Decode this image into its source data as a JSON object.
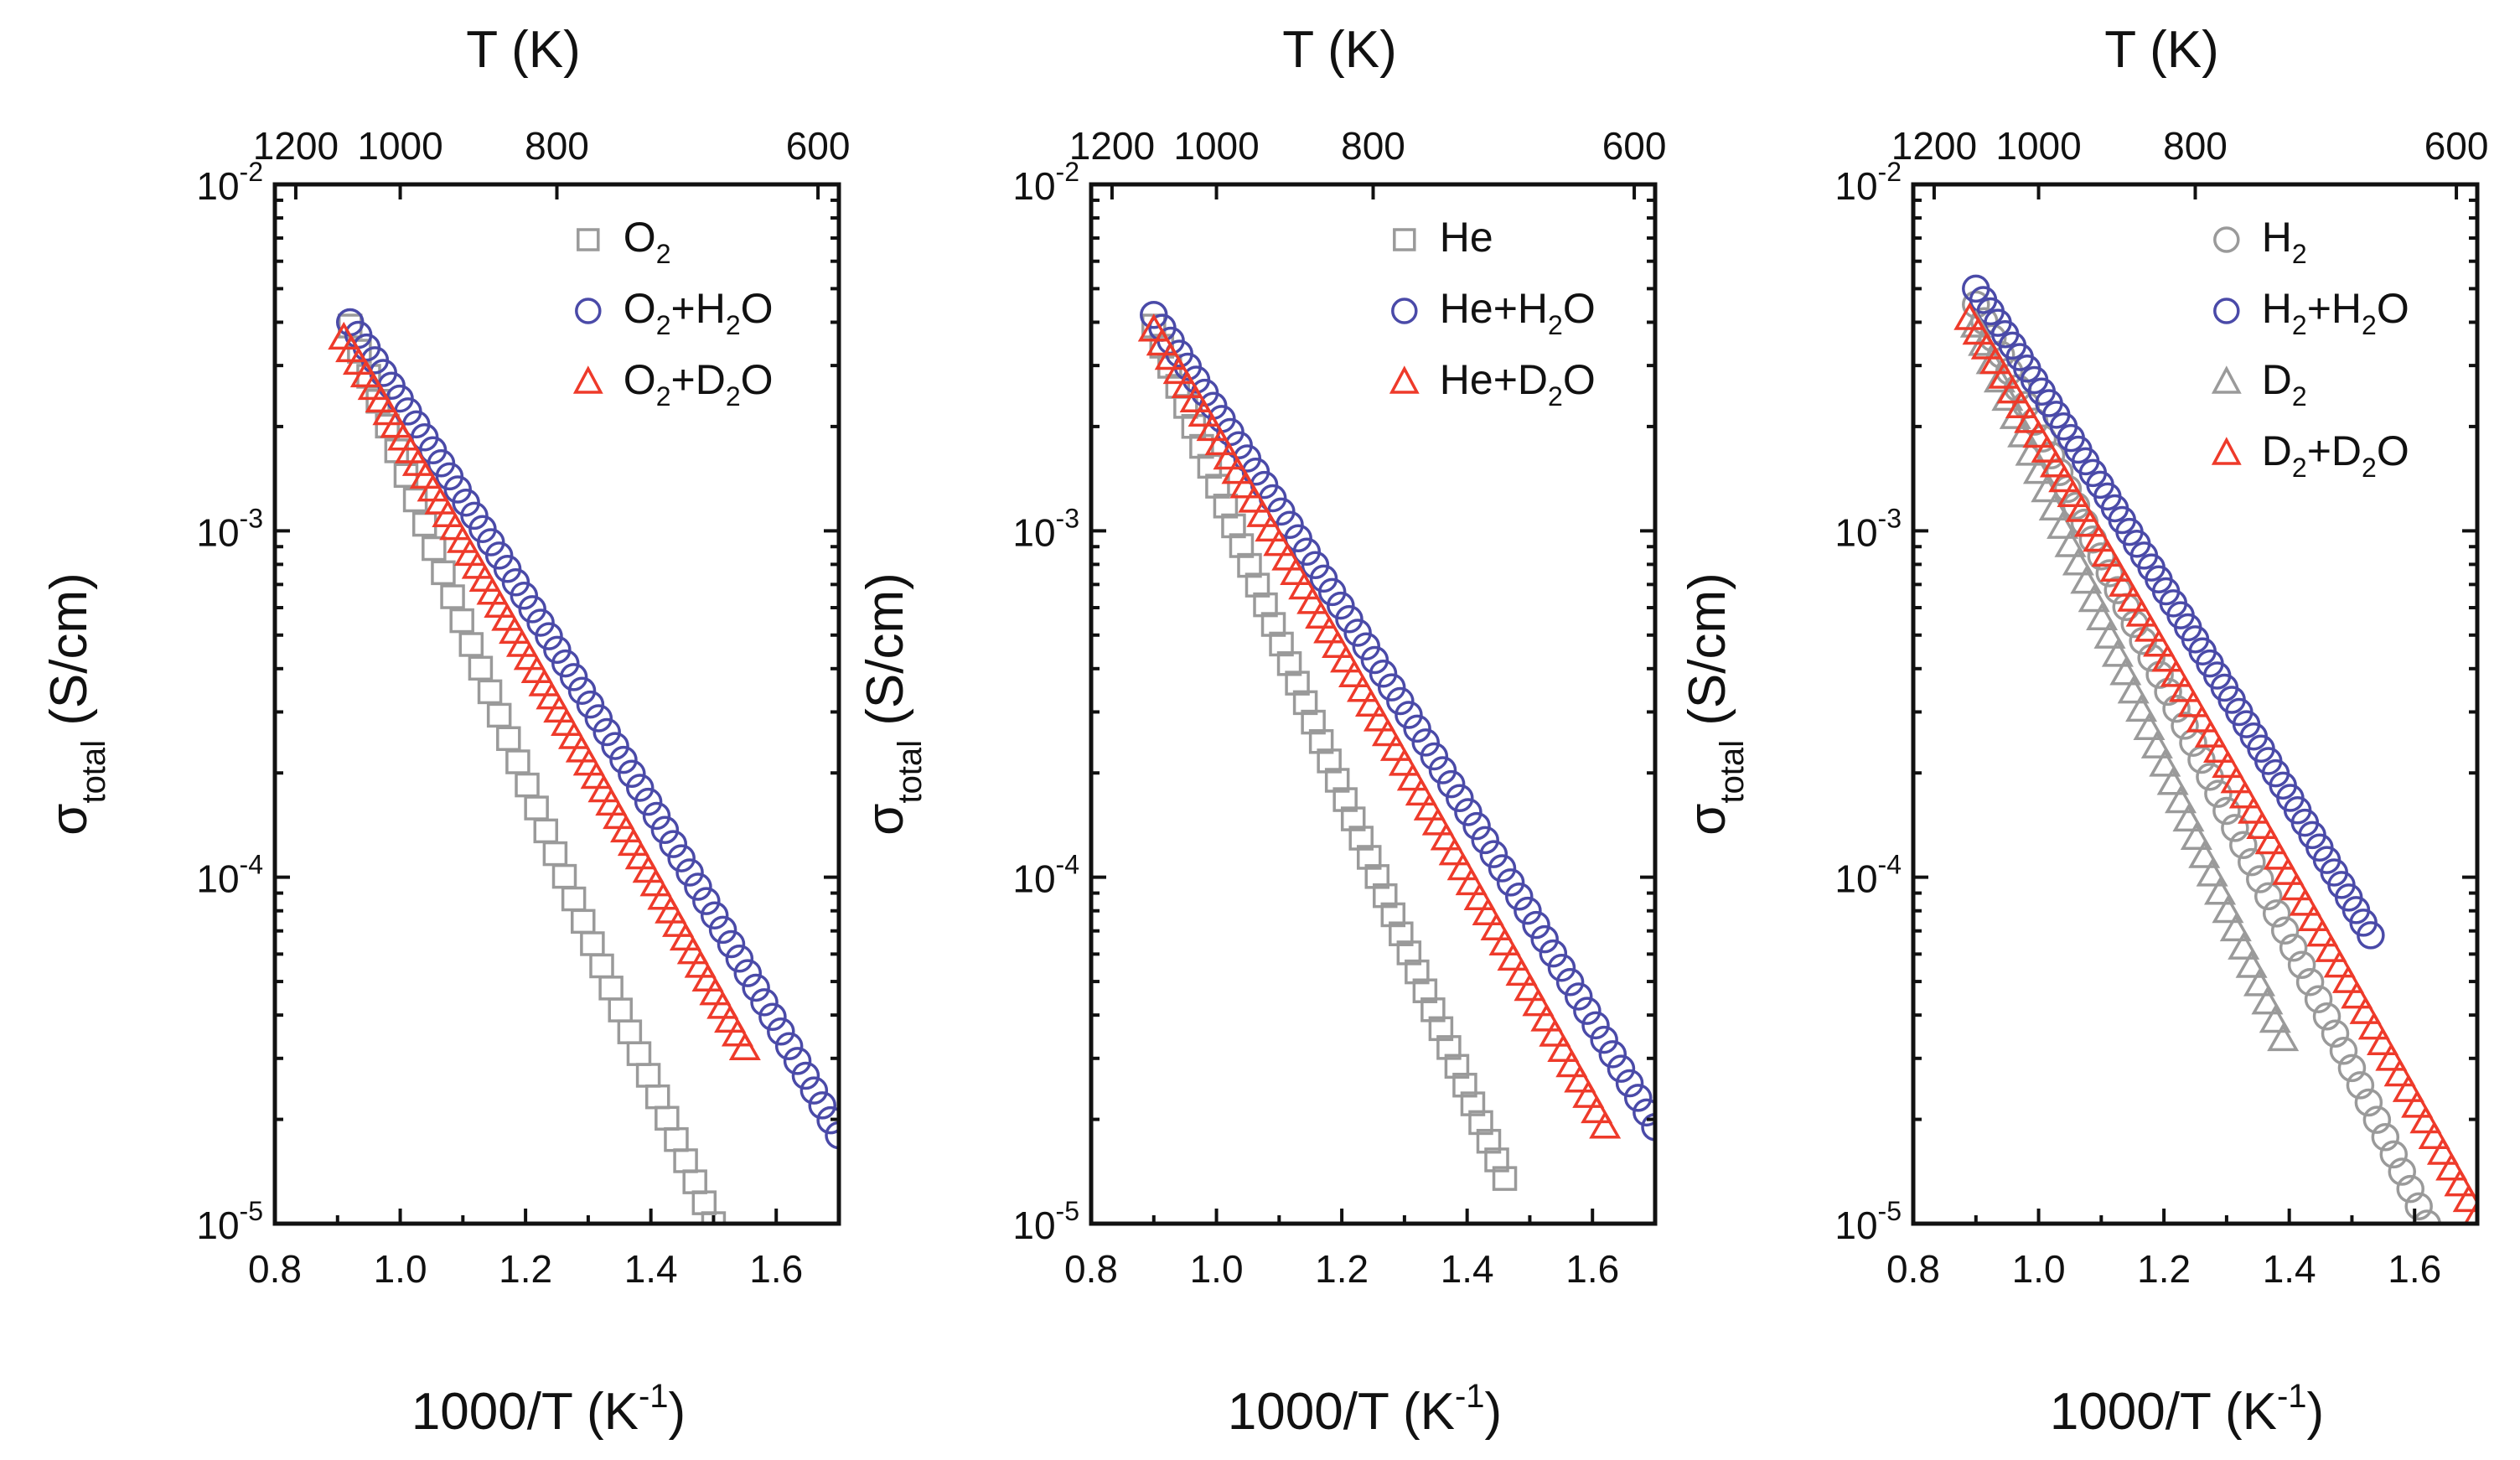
{
  "figure": {
    "panel_count": 3
  },
  "chart_data": [
    {
      "type": "scatter",
      "yscale": "log",
      "xlabel": "1000/T (K",
      "xlabel_sup": "-1",
      "xlabel_close": ")",
      "ylabel_sigma": "σ",
      "ylabel_sub": "total",
      "ylabel_unit": "(S/cm)",
      "top_xlabel": "T (K)",
      "xlim": [
        0.8,
        1.7
      ],
      "ylim": [
        1e-05,
        0.01
      ],
      "xticks": [
        0.8,
        1.0,
        1.2,
        1.4,
        1.6
      ],
      "xtick_labels": [
        "0.8",
        "1.0",
        "1.2",
        "1.4",
        "1.6"
      ],
      "yticks": [
        1e-05,
        0.0001,
        0.001,
        0.01
      ],
      "ytick_base": "10",
      "ytick_exps": [
        "-5",
        "-4",
        "-3",
        "-2"
      ],
      "top_ticks": [
        1200,
        1000,
        800,
        600
      ],
      "top_tick_labels": [
        "1200",
        "1000",
        "800",
        "600"
      ],
      "legend_position": "top-right",
      "series": [
        {
          "name": "O2",
          "legend": [
            {
              "t": "O"
            },
            {
              "t": "2",
              "sub": true
            }
          ],
          "marker": "square",
          "color": "#9a9a9a",
          "x_start": 0.92,
          "x_end": 1.5,
          "y_start": 0.0039,
          "y_end": 1e-05,
          "n": 40,
          "curve": -0.25
        },
        {
          "name": "O2+H2O",
          "legend": [
            {
              "t": "O"
            },
            {
              "t": "2",
              "sub": true
            },
            {
              "t": "+H"
            },
            {
              "t": "2",
              "sub": true
            },
            {
              "t": "O"
            }
          ],
          "marker": "circle",
          "color": "#4a4aa8",
          "x_start": 0.92,
          "x_end": 1.7,
          "y_start": 0.004,
          "y_end": 1.8e-05,
          "n": 60,
          "curve": 0.2
        },
        {
          "name": "O2+D2O",
          "legend": [
            {
              "t": "O"
            },
            {
              "t": "2",
              "sub": true
            },
            {
              "t": "+D"
            },
            {
              "t": "2",
              "sub": true
            },
            {
              "t": "O"
            }
          ],
          "marker": "triangle",
          "color": "#ee3a2a",
          "x_start": 0.91,
          "x_end": 1.55,
          "y_start": 0.0036,
          "y_end": 3.2e-05,
          "n": 55,
          "curve": 0.1
        }
      ]
    },
    {
      "type": "scatter",
      "yscale": "log",
      "xlabel": "1000/T (K",
      "xlabel_sup": "-1",
      "xlabel_close": ")",
      "ylabel_sigma": "σ",
      "ylabel_sub": "total",
      "ylabel_unit": "(S/cm)",
      "top_xlabel": "T (K)",
      "xlim": [
        0.8,
        1.7
      ],
      "ylim": [
        1e-05,
        0.01
      ],
      "xticks": [
        0.8,
        1.0,
        1.2,
        1.4,
        1.6
      ],
      "xtick_labels": [
        "0.8",
        "1.0",
        "1.2",
        "1.4",
        "1.6"
      ],
      "yticks": [
        1e-05,
        0.0001,
        0.001,
        0.01
      ],
      "ytick_base": "10",
      "ytick_exps": [
        "-5",
        "-4",
        "-3",
        "-2"
      ],
      "top_ticks": [
        1200,
        1000,
        800,
        600
      ],
      "top_tick_labels": [
        "1200",
        "1000",
        "800",
        "600"
      ],
      "legend_position": "top-right",
      "series": [
        {
          "name": "He",
          "legend": [
            {
              "t": "He"
            }
          ],
          "marker": "square",
          "color": "#9a9a9a",
          "x_start": 0.9,
          "x_end": 1.46,
          "y_start": 0.0039,
          "y_end": 1.35e-05,
          "n": 45,
          "curve": -0.1
        },
        {
          "name": "He+H2O",
          "legend": [
            {
              "t": "He+H"
            },
            {
              "t": "2",
              "sub": true
            },
            {
              "t": "O"
            }
          ],
          "marker": "circle",
          "color": "#4a4aa8",
          "x_start": 0.9,
          "x_end": 1.7,
          "y_start": 0.0042,
          "y_end": 1.9e-05,
          "n": 60,
          "curve": 0.15
        },
        {
          "name": "He+D2O",
          "legend": [
            {
              "t": "He+D"
            },
            {
              "t": "2",
              "sub": true
            },
            {
              "t": "O"
            }
          ],
          "marker": "triangle",
          "color": "#ee3a2a",
          "x_start": 0.9,
          "x_end": 1.62,
          "y_start": 0.0038,
          "y_end": 1.9e-05,
          "n": 55,
          "curve": 0.1
        }
      ]
    },
    {
      "type": "scatter",
      "yscale": "log",
      "xlabel": "1000/T (K",
      "xlabel_sup": "-1",
      "xlabel_close": ")",
      "ylabel_sigma": "σ",
      "ylabel_sub": "total",
      "ylabel_unit": "(S/cm)",
      "top_xlabel": "T (K)",
      "xlim": [
        0.8,
        1.7
      ],
      "ylim": [
        1e-05,
        0.01
      ],
      "xticks": [
        0.8,
        1.0,
        1.2,
        1.4,
        1.6
      ],
      "xtick_labels": [
        "0.8",
        "1.0",
        "1.2",
        "1.4",
        "1.6"
      ],
      "yticks": [
        1e-05,
        0.0001,
        0.001,
        0.01
      ],
      "ytick_base": "10",
      "ytick_exps": [
        "-5",
        "-4",
        "-3",
        "-2"
      ],
      "top_ticks": [
        1200,
        1000,
        800,
        600
      ],
      "top_tick_labels": [
        "1200",
        "1000",
        "800",
        "600"
      ],
      "legend_position": "top-right",
      "series": [
        {
          "name": "H2",
          "legend": [
            {
              "t": "H"
            },
            {
              "t": "2",
              "sub": true
            }
          ],
          "marker": "circle",
          "color": "#9a9a9a",
          "x_start": 0.9,
          "x_end": 1.62,
          "y_start": 0.0045,
          "y_end": 1e-05,
          "n": 55,
          "curve": 0.05
        },
        {
          "name": "H2+H2O",
          "legend": [
            {
              "t": "H"
            },
            {
              "t": "2",
              "sub": true
            },
            {
              "t": "+H"
            },
            {
              "t": "2",
              "sub": true
            },
            {
              "t": "O"
            }
          ],
          "marker": "circle",
          "color": "#4a4aa8",
          "x_start": 0.9,
          "x_end": 1.53,
          "y_start": 0.005,
          "y_end": 6.8e-05,
          "n": 55,
          "curve": 0.1
        },
        {
          "name": "D2",
          "legend": [
            {
              "t": "D"
            },
            {
              "t": "2",
              "sub": true
            }
          ],
          "marker": "triangle",
          "color": "#9a9a9a",
          "x_start": 0.9,
          "x_end": 1.39,
          "y_start": 0.0039,
          "y_end": 3.4e-05,
          "n": 40,
          "curve": 0.0
        },
        {
          "name": "D2+D2O",
          "legend": [
            {
              "t": "D"
            },
            {
              "t": "2",
              "sub": true
            },
            {
              "t": "+D"
            },
            {
              "t": "2",
              "sub": true
            },
            {
              "t": "O"
            }
          ],
          "marker": "triangle",
          "color": "#ee3a2a",
          "x_start": 0.89,
          "x_end": 1.7,
          "y_start": 0.0041,
          "y_end": 1.05e-05,
          "n": 60,
          "curve": 0.1
        }
      ]
    }
  ]
}
